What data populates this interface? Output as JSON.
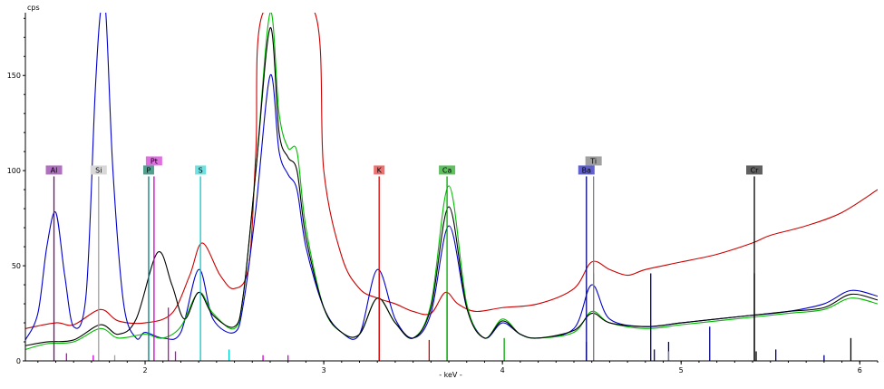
{
  "chart_data": {
    "type": "line",
    "title": "",
    "xlabel": "- keV -",
    "ylabel": "cps",
    "xlim": [
      1.33,
      6.1
    ],
    "ylim": [
      0,
      183
    ],
    "x_ticks": [
      2,
      3,
      4,
      5,
      6
    ],
    "y_ticks": [
      0,
      50,
      100,
      150
    ],
    "grid": false,
    "legend": "none",
    "background": "#ffffff",
    "series": [
      {
        "color": "#cc0000",
        "values": [
          [
            1.33,
            17
          ],
          [
            1.5,
            20
          ],
          [
            1.6,
            19
          ],
          [
            1.75,
            27
          ],
          [
            1.85,
            21
          ],
          [
            2.0,
            20
          ],
          [
            2.15,
            25
          ],
          [
            2.25,
            45
          ],
          [
            2.32,
            62
          ],
          [
            2.42,
            45
          ],
          [
            2.5,
            38
          ],
          [
            2.58,
            50
          ],
          [
            2.62,
            110
          ],
          [
            2.66,
            183
          ],
          [
            2.95,
            183
          ],
          [
            3.0,
            100
          ],
          [
            3.1,
            55
          ],
          [
            3.2,
            38
          ],
          [
            3.3,
            33
          ],
          [
            3.4,
            30
          ],
          [
            3.5,
            26
          ],
          [
            3.6,
            25
          ],
          [
            3.68,
            36
          ],
          [
            3.75,
            30
          ],
          [
            3.85,
            26
          ],
          [
            4.0,
            28
          ],
          [
            4.2,
            30
          ],
          [
            4.4,
            38
          ],
          [
            4.5,
            52
          ],
          [
            4.6,
            48
          ],
          [
            4.7,
            45
          ],
          [
            4.8,
            48
          ],
          [
            5.0,
            52
          ],
          [
            5.2,
            56
          ],
          [
            5.4,
            62
          ],
          [
            5.5,
            66
          ],
          [
            5.7,
            71
          ],
          [
            5.9,
            78
          ],
          [
            6.1,
            90
          ]
        ]
      },
      {
        "color": "#0000cc",
        "values": [
          [
            1.33,
            11
          ],
          [
            1.4,
            25
          ],
          [
            1.45,
            60
          ],
          [
            1.5,
            78
          ],
          [
            1.55,
            45
          ],
          [
            1.6,
            18
          ],
          [
            1.67,
            35
          ],
          [
            1.72,
            140
          ],
          [
            1.75,
            183
          ],
          [
            1.78,
            183
          ],
          [
            1.82,
            100
          ],
          [
            1.88,
            30
          ],
          [
            1.95,
            12
          ],
          [
            2.0,
            15
          ],
          [
            2.1,
            12
          ],
          [
            2.2,
            15
          ],
          [
            2.3,
            48
          ],
          [
            2.38,
            22
          ],
          [
            2.5,
            15
          ],
          [
            2.55,
            30
          ],
          [
            2.62,
            80
          ],
          [
            2.7,
            150
          ],
          [
            2.75,
            110
          ],
          [
            2.8,
            98
          ],
          [
            2.85,
            90
          ],
          [
            2.9,
            60
          ],
          [
            3.0,
            28
          ],
          [
            3.1,
            15
          ],
          [
            3.2,
            14
          ],
          [
            3.3,
            48
          ],
          [
            3.4,
            22
          ],
          [
            3.5,
            12
          ],
          [
            3.6,
            25
          ],
          [
            3.7,
            71
          ],
          [
            3.8,
            28
          ],
          [
            3.9,
            12
          ],
          [
            4.0,
            20
          ],
          [
            4.1,
            14
          ],
          [
            4.2,
            12
          ],
          [
            4.4,
            17
          ],
          [
            4.5,
            40
          ],
          [
            4.6,
            22
          ],
          [
            4.8,
            18
          ],
          [
            5.0,
            20
          ],
          [
            5.2,
            22
          ],
          [
            5.4,
            24
          ],
          [
            5.6,
            26
          ],
          [
            5.8,
            30
          ],
          [
            5.95,
            37
          ],
          [
            6.1,
            34
          ]
        ]
      },
      {
        "color": "#00bb00",
        "values": [
          [
            1.33,
            6
          ],
          [
            1.45,
            9
          ],
          [
            1.6,
            10
          ],
          [
            1.75,
            17
          ],
          [
            1.85,
            12
          ],
          [
            2.0,
            14
          ],
          [
            2.1,
            12
          ],
          [
            2.2,
            18
          ],
          [
            2.3,
            36
          ],
          [
            2.38,
            25
          ],
          [
            2.5,
            17
          ],
          [
            2.55,
            35
          ],
          [
            2.62,
            100
          ],
          [
            2.7,
            183
          ],
          [
            2.75,
            130
          ],
          [
            2.8,
            112
          ],
          [
            2.85,
            110
          ],
          [
            2.9,
            70
          ],
          [
            3.0,
            28
          ],
          [
            3.1,
            15
          ],
          [
            3.2,
            14
          ],
          [
            3.3,
            33
          ],
          [
            3.4,
            20
          ],
          [
            3.5,
            12
          ],
          [
            3.6,
            30
          ],
          [
            3.7,
            92
          ],
          [
            3.8,
            30
          ],
          [
            3.9,
            12
          ],
          [
            4.0,
            22
          ],
          [
            4.1,
            14
          ],
          [
            4.2,
            12
          ],
          [
            4.4,
            15
          ],
          [
            4.5,
            26
          ],
          [
            4.6,
            20
          ],
          [
            4.8,
            17
          ],
          [
            5.0,
            19
          ],
          [
            5.2,
            21
          ],
          [
            5.4,
            23
          ],
          [
            5.6,
            25
          ],
          [
            5.8,
            27
          ],
          [
            5.95,
            33
          ],
          [
            6.1,
            30
          ]
        ]
      },
      {
        "color": "#000000",
        "values": [
          [
            1.33,
            8
          ],
          [
            1.45,
            10
          ],
          [
            1.6,
            11
          ],
          [
            1.75,
            19
          ],
          [
            1.85,
            14
          ],
          [
            1.95,
            22
          ],
          [
            2.07,
            57
          ],
          [
            2.15,
            40
          ],
          [
            2.22,
            22
          ],
          [
            2.3,
            36
          ],
          [
            2.38,
            24
          ],
          [
            2.5,
            18
          ],
          [
            2.55,
            35
          ],
          [
            2.62,
            100
          ],
          [
            2.7,
            175
          ],
          [
            2.75,
            120
          ],
          [
            2.8,
            107
          ],
          [
            2.85,
            100
          ],
          [
            2.9,
            65
          ],
          [
            3.0,
            28
          ],
          [
            3.1,
            15
          ],
          [
            3.2,
            14
          ],
          [
            3.3,
            33
          ],
          [
            3.4,
            20
          ],
          [
            3.5,
            12
          ],
          [
            3.6,
            28
          ],
          [
            3.7,
            81
          ],
          [
            3.8,
            28
          ],
          [
            3.9,
            12
          ],
          [
            4.0,
            21
          ],
          [
            4.1,
            14
          ],
          [
            4.2,
            12
          ],
          [
            4.4,
            16
          ],
          [
            4.5,
            25
          ],
          [
            4.6,
            20
          ],
          [
            4.8,
            18
          ],
          [
            5.0,
            20
          ],
          [
            5.2,
            22
          ],
          [
            5.4,
            24
          ],
          [
            5.6,
            26
          ],
          [
            5.8,
            28
          ],
          [
            5.95,
            35
          ],
          [
            6.1,
            32
          ]
        ]
      }
    ],
    "element_markers": [
      {
        "label": "Al",
        "energy": 1.49,
        "tag_color": "#b070c0",
        "line_color": "#800080",
        "height": 97,
        "tag_level": 0
      },
      {
        "label": "Si",
        "energy": 1.74,
        "tag_color": "#d8d8d8",
        "line_color": "#a0a0a0",
        "height": 97,
        "tag_level": 0
      },
      {
        "label": "P",
        "energy": 2.02,
        "tag_color": "#50a090",
        "line_color": "#008080",
        "height": 97,
        "tag_level": 0
      },
      {
        "label": "Pt",
        "energy": 2.05,
        "tag_color": "#e070e0",
        "line_color": "#cc00cc",
        "height": 97,
        "tag_level": 1
      },
      {
        "label": "S",
        "energy": 2.31,
        "tag_color": "#70e0e0",
        "line_color": "#00cccc",
        "height": 97,
        "tag_level": 0
      },
      {
        "label": "K",
        "energy": 3.31,
        "tag_color": "#f07070",
        "line_color": "#dd0000",
        "height": 97,
        "tag_level": 0
      },
      {
        "label": "Ca",
        "energy": 3.69,
        "tag_color": "#60c060",
        "line_color": "#00aa00",
        "height": 97,
        "tag_level": 0
      },
      {
        "label": "Ba",
        "energy": 4.47,
        "tag_color": "#6060d0",
        "line_color": "#000080",
        "height": 97,
        "tag_level": 0
      },
      {
        "label": "Ti",
        "energy": 4.51,
        "tag_color": "#a0a0a0",
        "line_color": "#808080",
        "height": 97,
        "tag_level": 1
      },
      {
        "label": "Cr",
        "energy": 5.41,
        "tag_color": "#606060",
        "line_color": "#000000",
        "height": 97,
        "tag_level": 0
      }
    ],
    "stick_lines": [
      {
        "energy": 1.56,
        "height": 4,
        "color": "#cc00cc"
      },
      {
        "energy": 1.71,
        "height": 3,
        "color": "#cc00cc"
      },
      {
        "energy": 1.83,
        "height": 3,
        "color": "#a0a0a0"
      },
      {
        "energy": 2.13,
        "height": 28,
        "color": "#cc00cc"
      },
      {
        "energy": 2.17,
        "height": 5,
        "color": "#cc00cc"
      },
      {
        "energy": 2.47,
        "height": 6,
        "color": "#00cccc"
      },
      {
        "energy": 2.66,
        "height": 3,
        "color": "#cc00cc"
      },
      {
        "energy": 2.8,
        "height": 3,
        "color": "#cc00cc"
      },
      {
        "energy": 3.31,
        "height": 46,
        "color": "#dd0000"
      },
      {
        "energy": 3.59,
        "height": 11,
        "color": "#dd0000"
      },
      {
        "energy": 3.69,
        "height": 36,
        "color": "#00aa00"
      },
      {
        "energy": 4.01,
        "height": 12,
        "color": "#00aa00"
      },
      {
        "energy": 4.47,
        "height": 10,
        "color": "#000080"
      },
      {
        "energy": 4.51,
        "height": 46,
        "color": "#808080"
      },
      {
        "energy": 4.83,
        "height": 46,
        "color": "#000080"
      },
      {
        "energy": 4.85,
        "height": 6,
        "color": "#000080"
      },
      {
        "energy": 4.93,
        "height": 10,
        "color": "#000080"
      },
      {
        "energy": 4.93,
        "height": 5,
        "color": "#808080"
      },
      {
        "energy": 5.16,
        "height": 18,
        "color": "#000080"
      },
      {
        "energy": 5.41,
        "height": 46,
        "color": "#000000"
      },
      {
        "energy": 5.42,
        "height": 5,
        "color": "#000000"
      },
      {
        "energy": 5.53,
        "height": 6,
        "color": "#000080"
      },
      {
        "energy": 5.8,
        "height": 3,
        "color": "#000080"
      },
      {
        "energy": 5.95,
        "height": 12,
        "color": "#000000"
      }
    ]
  }
}
